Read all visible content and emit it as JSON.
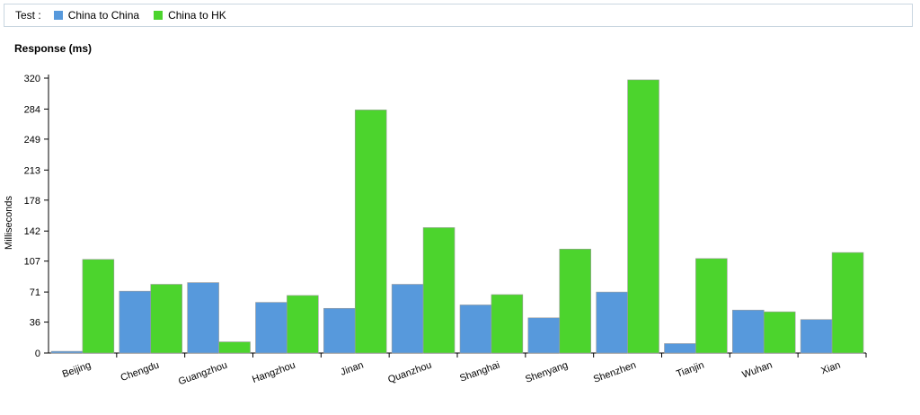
{
  "legend": {
    "title": "Test :",
    "items": [
      {
        "label": "China to China",
        "color": "#5799dc"
      },
      {
        "label": "China to HK",
        "color": "#4cd42d"
      }
    ]
  },
  "chart_data": {
    "type": "bar",
    "title": "Response (ms)",
    "xlabel": "",
    "ylabel": "Milliseconds",
    "categories": [
      "Beijing",
      "Chengdu",
      "Guangzhou",
      "Hangzhou",
      "Jinan",
      "Quanzhou",
      "Shanghai",
      "Shenyang",
      "Shenzhen",
      "Tianjin",
      "Wuhan",
      "Xian"
    ],
    "series": [
      {
        "name": "China to China",
        "color": "#5799dc",
        "values": [
          2,
          72,
          82,
          59,
          52,
          80,
          56,
          41,
          71,
          11,
          50,
          39
        ]
      },
      {
        "name": "China to HK",
        "color": "#4cd42d",
        "values": [
          109,
          80,
          13,
          67,
          283,
          146,
          68,
          121,
          318,
          110,
          48,
          117
        ]
      }
    ],
    "yticks": [
      "0",
      "36",
      "71",
      "107",
      "142",
      "178",
      "213",
      "249",
      "284",
      "320"
    ],
    "ylim": [
      0,
      320
    ],
    "grid": false,
    "legend_position": "top"
  }
}
